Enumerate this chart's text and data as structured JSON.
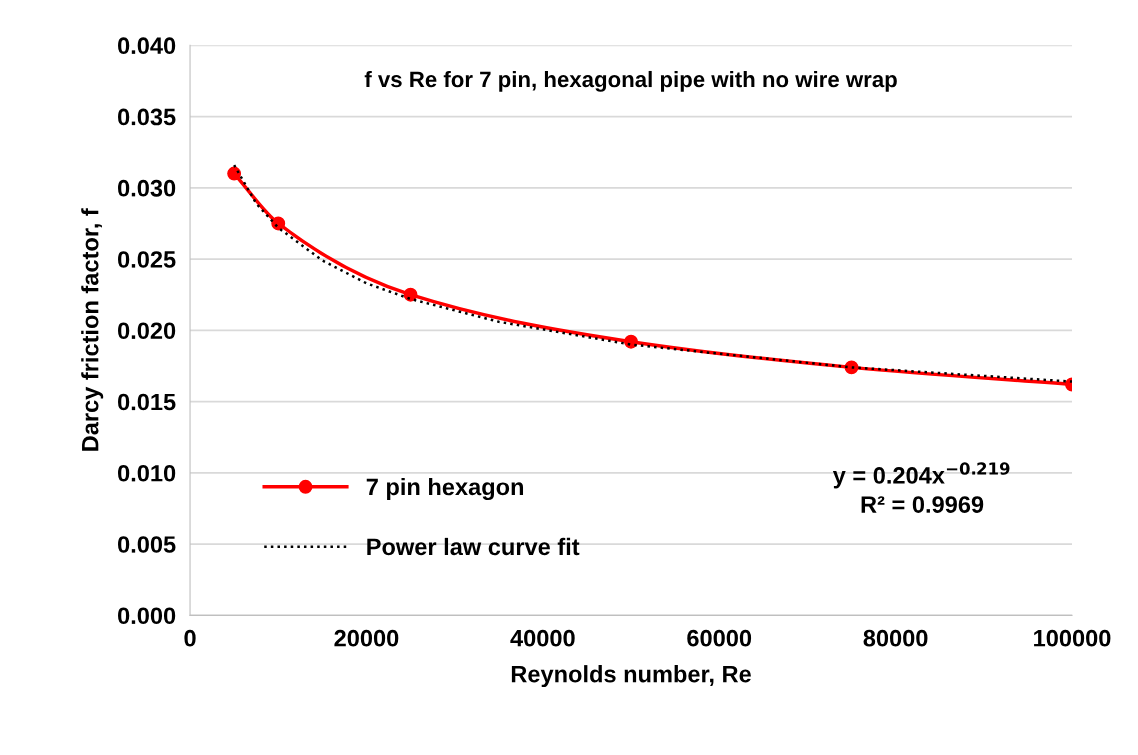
{
  "chart_data": {
    "type": "line",
    "title": "f vs Re for 7 pin, hexagonal pipe with no wire wrap",
    "xlabel": "Reynolds number, Re",
    "ylabel": "Darcy friction factor, f",
    "x": [
      5000,
      10000,
      25000,
      50000,
      75000,
      100000
    ],
    "series": [
      {
        "name": "7 pin hexagon",
        "color": "#ff0000",
        "marker": "circle",
        "line_style": "solid",
        "values": [
          0.031,
          0.0275,
          0.0225,
          0.0192,
          0.0174,
          0.0162
        ]
      },
      {
        "name": "Power law curve fit",
        "color": "#000000",
        "marker": "none",
        "line_style": "dotted",
        "type": "line",
        "x": [
          5000,
          7500,
          10000,
          15000,
          20000,
          25000,
          35000,
          50000,
          75000,
          100000
        ],
        "values": [
          0.0316,
          0.0289,
          0.0272,
          0.0249,
          0.0233,
          0.0222,
          0.0206,
          0.019,
          0.0174,
          0.0164
        ]
      }
    ],
    "annotations": [
      "y = 0.204x$^{−0.219}$\nR² = 0.9969"
    ],
    "xlim": [
      0,
      100000
    ],
    "xticks": [
      0,
      20000,
      40000,
      60000,
      80000,
      100000
    ],
    "ylim": [
      0,
      0.04
    ],
    "yticks": [
      {
        "value": 0,
        "label": "0.000"
      },
      {
        "value": 0.005,
        "label": "0.005"
      },
      {
        "value": 0.01,
        "label": "0.010"
      },
      {
        "value": 0.015,
        "label": "0.015"
      },
      {
        "value": 0.02,
        "label": "0.020"
      },
      {
        "value": 0.025,
        "label": "0.025"
      },
      {
        "value": 0.03,
        "label": "0.030"
      },
      {
        "value": 0.035,
        "label": "0.035"
      },
      {
        "value": 0.04,
        "label": "0.040"
      }
    ],
    "grid": "y",
    "legend": "bottom left"
  }
}
